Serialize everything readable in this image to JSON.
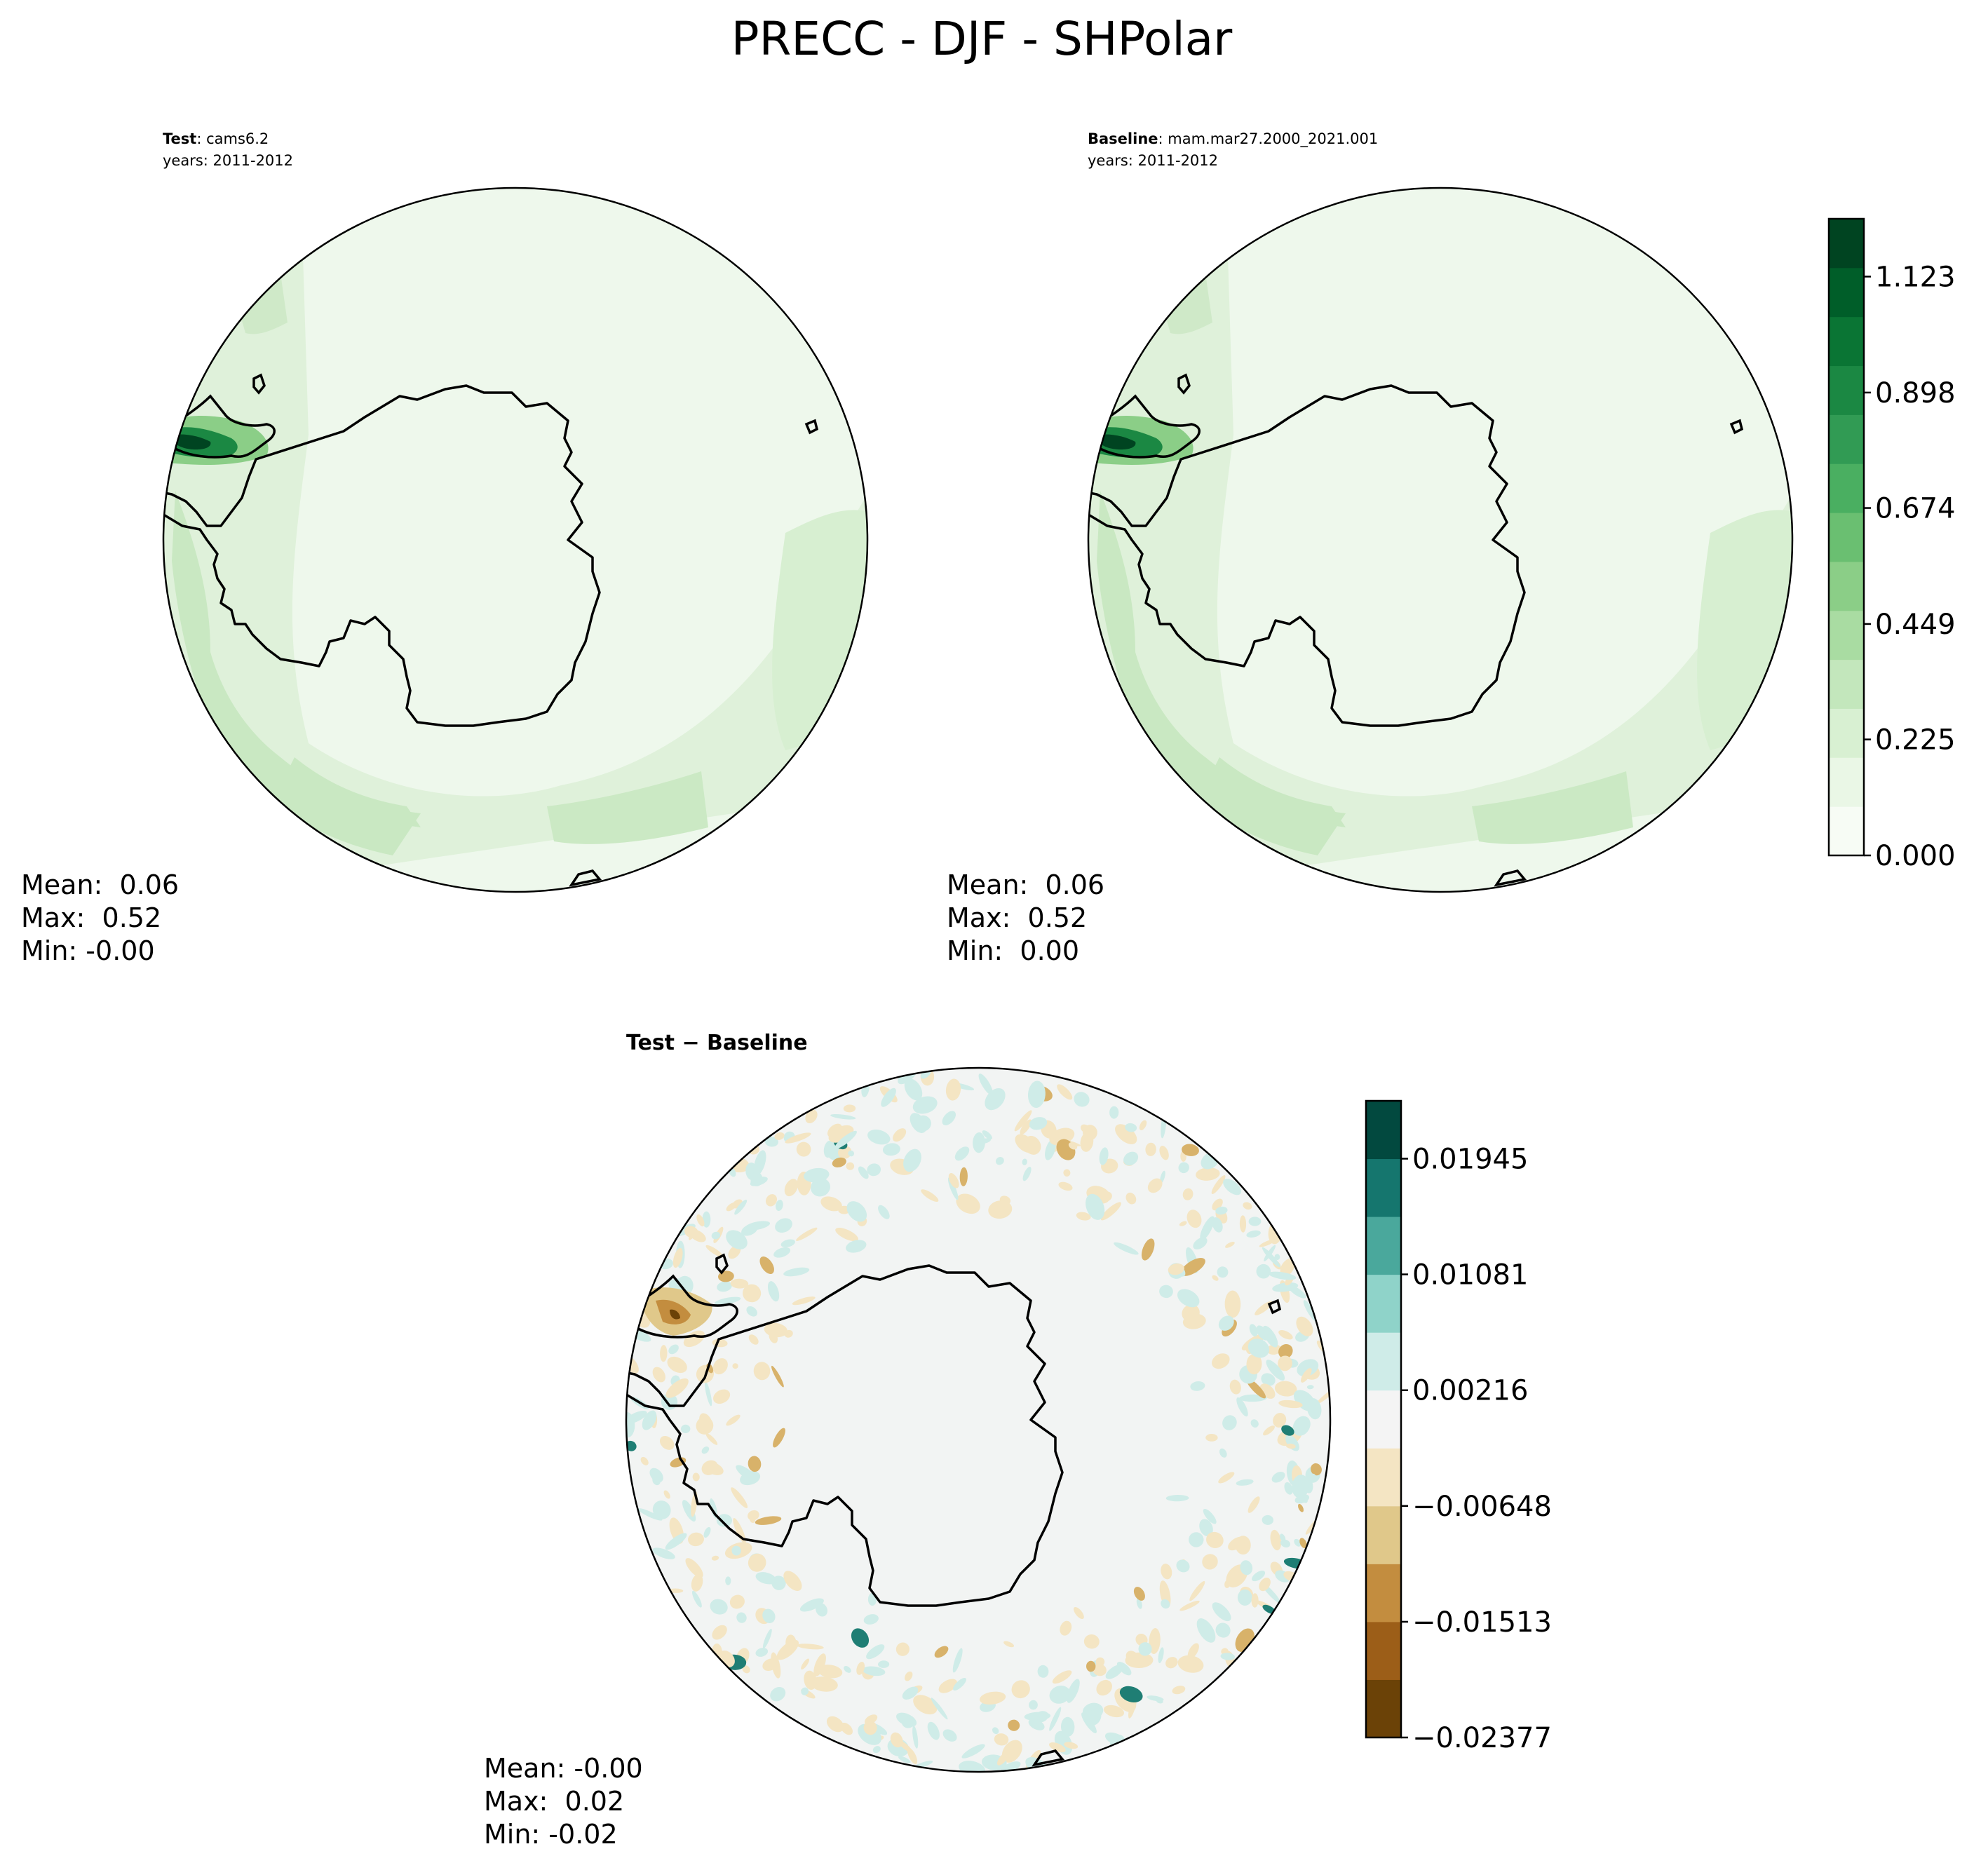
{
  "title": "PRECC - DJF - SHPolar",
  "panels": {
    "test": {
      "label_bold": "Test",
      "label_rest": ": cams6.2",
      "years": "years: 2011-2012",
      "stats": {
        "mean": "Mean:  0.06",
        "max": "Max:  0.52",
        "min": "Min: -0.00"
      }
    },
    "baseline": {
      "label_bold": "Baseline",
      "label_rest": ": mam.mar27.2000_2021.001",
      "years": "years: 2011-2012",
      "stats": {
        "mean": "Mean:  0.06",
        "max": "Max:  0.52",
        "min": "Min:  0.00"
      }
    },
    "diff": {
      "label": "Test − Baseline",
      "stats": {
        "mean": "Mean: -0.00",
        "max": "Max:  0.02",
        "min": "Min: -0.02"
      }
    }
  },
  "colorbars": {
    "main": {
      "ticks": [
        "1.123",
        "0.898",
        "0.674",
        "0.449",
        "0.225",
        "0.000"
      ],
      "tick_values": [
        1.123,
        0.898,
        0.674,
        0.449,
        0.225,
        0.0
      ],
      "range": [
        0.0,
        1.2352
      ],
      "colors": [
        "#f7fcf5",
        "#eaf7e6",
        "#d8f0d2",
        "#c3e7bc",
        "#a9dca2",
        "#8bce87",
        "#6abf71",
        "#4aaf61",
        "#319b54",
        "#1b8843",
        "#0a7534",
        "#005e29",
        "#004421"
      ]
    },
    "diff": {
      "ticks": [
        "0.01945",
        "0.01081",
        "0.00216",
        "−0.00648",
        "−0.01513",
        "−0.02377"
      ],
      "tick_values": [
        0.01945,
        0.01081,
        0.00216,
        -0.00648,
        -0.01513,
        -0.02377
      ],
      "range": [
        -0.02377,
        0.02377
      ],
      "colors": [
        "#6b4207",
        "#9c5e18",
        "#c38d3f",
        "#e0c88a",
        "#f4e5c3",
        "#f4f4f4",
        "#cfece8",
        "#8fd3c9",
        "#4aa89c",
        "#15766e",
        "#02493f"
      ]
    }
  },
  "map_colors": {
    "field_bg": "#eef8ec",
    "band_1": "#dff1da",
    "band_2": "#c9e8c2",
    "band_3": "#b0dca8",
    "peak": "#005e29",
    "diff_bg": "#f2f4f3",
    "pos_light": "#cfece8",
    "pos_dark": "#1f7e74",
    "neg_light": "#f4e5c3",
    "neg_mid": "#d8b26a",
    "neg_dark": "#7a4e0f",
    "coast": "#000000"
  }
}
